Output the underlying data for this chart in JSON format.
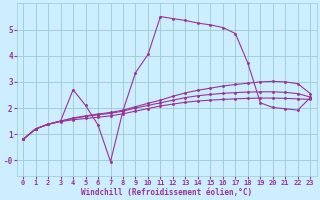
{
  "xlabel": "Windchill (Refroidissement éolien,°C)",
  "background_color": "#cceeff",
  "grid_color": "#99cccc",
  "line_color": "#993399",
  "xlim": [
    -0.5,
    23.5
  ],
  "ylim": [
    -0.6,
    6.0
  ],
  "xticks": [
    0,
    1,
    2,
    3,
    4,
    5,
    6,
    7,
    8,
    9,
    10,
    11,
    12,
    13,
    14,
    15,
    16,
    17,
    18,
    19,
    20,
    21,
    22,
    23
  ],
  "yticks": [
    0,
    1,
    2,
    3,
    4,
    5
  ],
  "ytick_labels": [
    "-0",
    "1",
    "2",
    "3",
    "4",
    "5"
  ],
  "curve_bottom_x": [
    0,
    1,
    2,
    3,
    4,
    5,
    6,
    7,
    8,
    9,
    10,
    11,
    12,
    13,
    14,
    15,
    16,
    17,
    18,
    19,
    20,
    21,
    22,
    23
  ],
  "curve_bottom_y": [
    0.8,
    1.2,
    1.38,
    1.48,
    1.55,
    1.6,
    1.65,
    1.7,
    1.78,
    1.88,
    1.98,
    2.08,
    2.15,
    2.22,
    2.27,
    2.3,
    2.33,
    2.35,
    2.37,
    2.38,
    2.38,
    2.37,
    2.35,
    2.33
  ],
  "curve_mid1_x": [
    0,
    1,
    2,
    3,
    4,
    5,
    6,
    7,
    8,
    9,
    10,
    11,
    12,
    13,
    14,
    15,
    16,
    17,
    18,
    19,
    20,
    21,
    22,
    23
  ],
  "curve_mid1_y": [
    0.8,
    1.2,
    1.38,
    1.5,
    1.6,
    1.68,
    1.74,
    1.8,
    1.88,
    2.0,
    2.1,
    2.2,
    2.3,
    2.4,
    2.47,
    2.52,
    2.56,
    2.59,
    2.61,
    2.62,
    2.62,
    2.6,
    2.55,
    2.42
  ],
  "curve_mid2_x": [
    0,
    1,
    2,
    3,
    4,
    5,
    6,
    7,
    8,
    9,
    10,
    11,
    12,
    13,
    14,
    15,
    16,
    17,
    18,
    19,
    20,
    21,
    22,
    23
  ],
  "curve_mid2_y": [
    0.8,
    1.2,
    1.38,
    1.5,
    1.62,
    1.7,
    1.77,
    1.83,
    1.92,
    2.05,
    2.18,
    2.3,
    2.45,
    2.58,
    2.68,
    2.76,
    2.84,
    2.9,
    2.95,
    3.0,
    3.02,
    3.0,
    2.93,
    2.55
  ],
  "curve_main_x": [
    0,
    1,
    2,
    3,
    4,
    5,
    6,
    7,
    8,
    9,
    10,
    11,
    12,
    13,
    14,
    15,
    16,
    17,
    18,
    19,
    20,
    21,
    22,
    23
  ],
  "curve_main_y": [
    0.8,
    1.2,
    1.38,
    1.5,
    2.7,
    2.1,
    1.35,
    -0.05,
    1.9,
    3.35,
    4.05,
    5.5,
    5.42,
    5.35,
    5.25,
    5.18,
    5.08,
    4.85,
    3.72,
    2.2,
    2.02,
    1.97,
    1.92,
    2.4
  ]
}
